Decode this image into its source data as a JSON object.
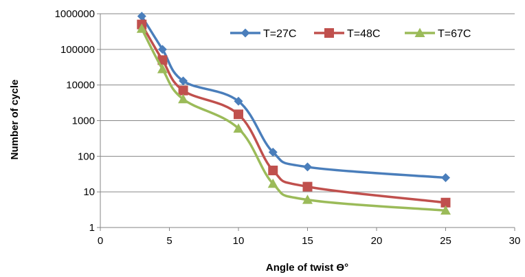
{
  "chart_data": {
    "type": "line",
    "xlabel": "Angle of twist Ɵ°",
    "ylabel": "Number of cycle",
    "xlim": [
      0,
      30
    ],
    "ylim": [
      1,
      1000000
    ],
    "y_scale": "log",
    "grid": "horizontal",
    "legend_position": "top-right",
    "x_ticks": [
      "0",
      "5",
      "10",
      "15",
      "20",
      "25",
      "30"
    ],
    "y_ticks": [
      "1",
      "10",
      "100",
      "1000",
      "10000",
      "100000",
      "1000000"
    ],
    "x": [
      3,
      4.5,
      6,
      10,
      12.5,
      15,
      25
    ],
    "series": [
      {
        "name": "T=27C",
        "marker": "diamond",
        "color": "#4a7ebb",
        "values": [
          850000,
          100000,
          13000,
          3500,
          130,
          50,
          25
        ]
      },
      {
        "name": "T=48C",
        "marker": "square",
        "color": "#c0504d",
        "values": [
          500000,
          50000,
          7000,
          1500,
          40,
          14,
          5
        ]
      },
      {
        "name": "T=67C",
        "marker": "triangle",
        "color": "#9bbb59",
        "values": [
          380000,
          28000,
          4000,
          600,
          17,
          6,
          3
        ]
      }
    ]
  }
}
